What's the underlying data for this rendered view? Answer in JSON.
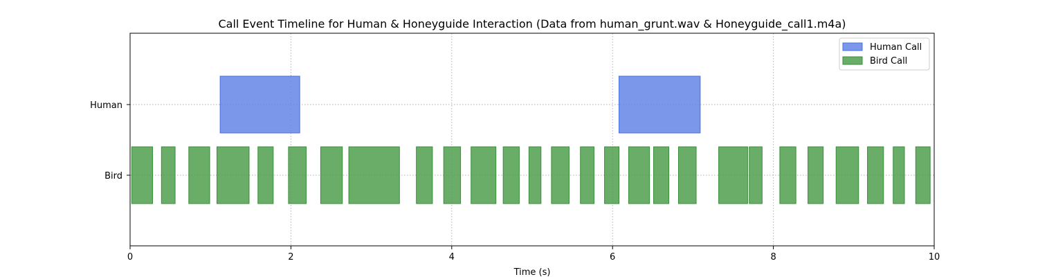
{
  "chart_data": {
    "type": "bar",
    "orientation": "horizontal-broken",
    "title": "Call Event Timeline for Human & Honeyguide Interaction (Data from human_grunt.wav & Honeyguide_call1.m4a)",
    "xlabel": "Time (s)",
    "ylabel": "",
    "xlim": [
      0,
      10
    ],
    "x_ticks": [
      0,
      2,
      4,
      6,
      8,
      10
    ],
    "categories": [
      "Human",
      "Bird"
    ],
    "grid": true,
    "legend_position": "top-right",
    "series": [
      {
        "name": "Human Call",
        "category": "Human",
        "color": "#6385e5",
        "intervals": [
          [
            1.12,
            2.11
          ],
          [
            6.08,
            7.09
          ]
        ]
      },
      {
        "name": "Bird Call",
        "category": "Bird",
        "color": "#4f9f4f",
        "intervals": [
          [
            0.02,
            0.28
          ],
          [
            0.39,
            0.56
          ],
          [
            0.73,
            0.99
          ],
          [
            1.08,
            1.48
          ],
          [
            1.59,
            1.78
          ],
          [
            1.97,
            2.19
          ],
          [
            2.37,
            2.64
          ],
          [
            2.72,
            3.35
          ],
          [
            3.56,
            3.76
          ],
          [
            3.9,
            4.11
          ],
          [
            4.24,
            4.55
          ],
          [
            4.64,
            4.84
          ],
          [
            4.96,
            5.11
          ],
          [
            5.24,
            5.46
          ],
          [
            5.6,
            5.77
          ],
          [
            5.9,
            6.08
          ],
          [
            6.2,
            6.46
          ],
          [
            6.51,
            6.7
          ],
          [
            6.82,
            7.04
          ],
          [
            7.32,
            7.68
          ],
          [
            7.7,
            7.86
          ],
          [
            8.08,
            8.28
          ],
          [
            8.43,
            8.62
          ],
          [
            8.78,
            9.06
          ],
          [
            9.17,
            9.37
          ],
          [
            9.49,
            9.63
          ],
          [
            9.77,
            9.95
          ]
        ]
      }
    ]
  }
}
